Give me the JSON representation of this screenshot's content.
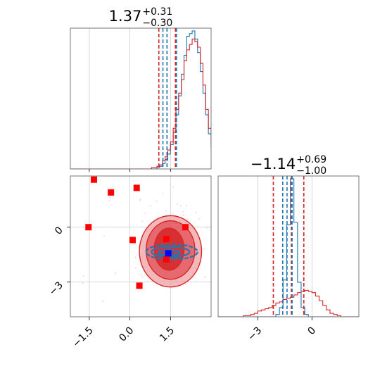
{
  "chart_data": {
    "type": "corner",
    "parameters": [
      "",
      ""
    ],
    "colors": {
      "series_a": "#d62728",
      "series_b": "#1f77b4",
      "points": "#ff0000",
      "truth": "#0000ff",
      "grid": "#cccccc"
    },
    "panels": {
      "hist_1": {
        "title": {
          "main": "1.37",
          "sup": "+0.31",
          "sub": "−0.30"
        },
        "xlim": [
          -2.2,
          3.0
        ],
        "quantile_lines": {
          "series_a": [
            1.07,
            1.37,
            1.68
          ],
          "series_b": [
            1.22,
            1.37,
            1.72
          ]
        },
        "series_a_hist": {
          "edges_start": -2.2,
          "bin_width": 0.1,
          "heights": [
            0,
            0,
            0,
            0,
            0,
            0,
            0,
            0,
            0,
            0,
            0,
            0,
            0,
            0,
            0,
            0,
            0,
            0,
            0,
            0,
            0,
            0,
            0,
            0,
            0,
            0,
            0,
            0,
            0,
            0,
            1,
            1,
            2,
            3,
            6,
            9,
            14,
            20,
            30,
            44,
            56,
            66,
            80,
            88,
            92,
            96,
            94,
            90,
            78,
            62,
            44,
            30,
            20,
            12,
            8,
            4,
            2,
            1,
            0,
            0,
            0,
            0,
            0,
            0,
            0,
            0,
            0
          ]
        },
        "series_b_hist": {
          "edges_start": -2.2,
          "bin_width": 0.1,
          "heights": [
            0,
            0,
            0,
            0,
            0,
            0,
            0,
            0,
            0,
            0,
            0,
            0,
            0,
            0,
            0,
            0,
            0,
            0,
            0,
            0,
            0,
            0,
            0,
            0,
            0,
            0,
            0,
            0,
            0,
            0,
            0,
            0,
            1,
            2,
            4,
            7,
            11,
            18,
            27,
            40,
            54,
            70,
            84,
            98,
            100,
            102,
            96,
            86,
            72,
            56,
            40,
            26,
            16,
            9,
            5,
            2,
            1,
            0,
            0,
            0,
            0,
            0,
            0,
            0,
            0,
            0,
            0
          ]
        }
      },
      "hist_2": {
        "title": {
          "main": "−1.14",
          "sup": "+0.69",
          "sub": "−1.00"
        },
        "xlim": [
          -5.2,
          2.6
        ],
        "xticks": [
          -3,
          0
        ],
        "xticklabels": [
          "−3",
          "0"
        ],
        "quantile_lines": {
          "series_a": [
            -2.14,
            -1.14,
            -0.45
          ],
          "series_b": [
            -1.62,
            -1.38,
            -1.1
          ]
        },
        "series_a_hist": {
          "edges_start": -5.2,
          "bin_width": 0.2,
          "heights": [
            0,
            0,
            0,
            0,
            0,
            0,
            0,
            1,
            1,
            2,
            3,
            5,
            6,
            7,
            8,
            10,
            12,
            13,
            15,
            16,
            17,
            19,
            21,
            22,
            23,
            22,
            21,
            18,
            14,
            10,
            6,
            3,
            2,
            1,
            0,
            0,
            0,
            0,
            0
          ]
        },
        "series_b_hist": {
          "edges_start": -5.2,
          "bin_width": 0.2,
          "heights": [
            0,
            0,
            0,
            0,
            0,
            0,
            0,
            0,
            0,
            0,
            0,
            0,
            0,
            0,
            0,
            0,
            2,
            8,
            32,
            80,
            120,
            82,
            30,
            8,
            2,
            0,
            0,
            0,
            0,
            0,
            0,
            0,
            0,
            0,
            0,
            0,
            0,
            0,
            0
          ]
        }
      },
      "joint": {
        "xlim": [
          -2.2,
          3.0
        ],
        "ylim": [
          -4.9,
          2.8
        ],
        "xticks": [
          -1.5,
          0.0,
          1.5
        ],
        "xticklabels": [
          "−1.5",
          "0.0",
          "1.5"
        ],
        "yticks": [
          0,
          -3
        ],
        "yticklabels": [
          "0",
          "−3"
        ],
        "square_points": [
          [
            -1.33,
            2.6
          ],
          [
            -0.7,
            1.9
          ],
          [
            0.25,
            2.15
          ],
          [
            -1.53,
            0.0
          ],
          [
            0.1,
            -0.7
          ],
          [
            0.35,
            -3.2
          ],
          [
            1.35,
            -0.65
          ],
          [
            1.35,
            -1.75
          ],
          [
            2.05,
            0.0
          ]
        ],
        "truth_point": [
          1.42,
          -1.43
        ],
        "series_a_contours": [
          {
            "cx": 1.5,
            "cy": -1.32,
            "rx": 1.15,
            "ry": 1.95
          },
          {
            "cx": 1.5,
            "cy": -1.25,
            "rx": 0.9,
            "ry": 1.6
          },
          {
            "cx": 1.45,
            "cy": -1.2,
            "rx": 0.55,
            "ry": 1.15
          }
        ],
        "series_b_contours": [
          {
            "cx": 1.55,
            "cy": -1.35,
            "rx": 0.95,
            "ry": 0.42
          },
          {
            "cx": 1.5,
            "cy": -1.35,
            "rx": 0.7,
            "ry": 0.28
          },
          {
            "cx": 1.45,
            "cy": -1.4,
            "rx": 0.4,
            "ry": 0.16
          }
        ]
      }
    }
  }
}
